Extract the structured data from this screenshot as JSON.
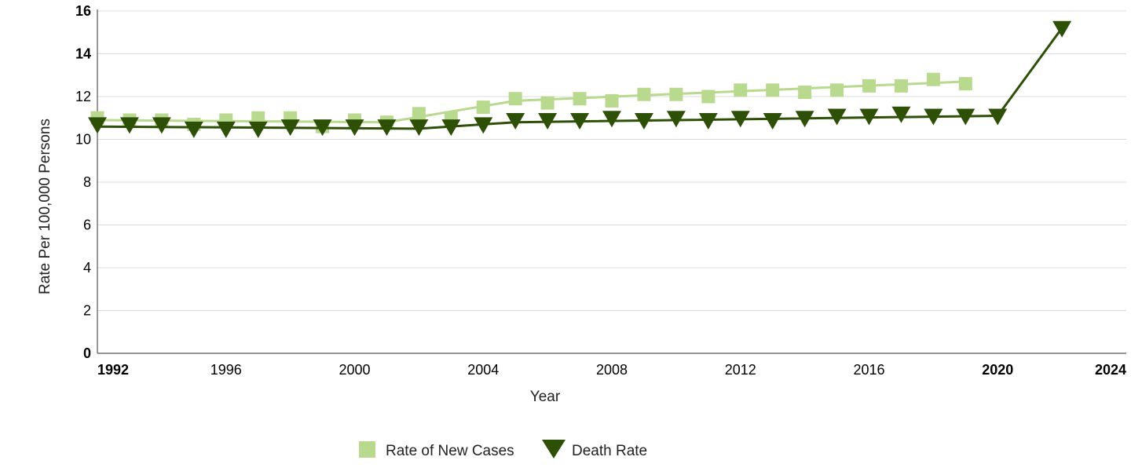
{
  "chart_data": {
    "type": "line",
    "xlabel": "Year",
    "ylabel": "Rate Per 100,000 Persons",
    "xlim": [
      1992,
      2024
    ],
    "ylim": [
      0,
      16
    ],
    "x_ticks": [
      {
        "value": 1992,
        "label": "1992",
        "bold": true
      },
      {
        "value": 1996,
        "label": "1996",
        "bold": false
      },
      {
        "value": 2000,
        "label": "2000",
        "bold": false
      },
      {
        "value": 2004,
        "label": "2004",
        "bold": false
      },
      {
        "value": 2008,
        "label": "2008",
        "bold": false
      },
      {
        "value": 2012,
        "label": "2012",
        "bold": false
      },
      {
        "value": 2016,
        "label": "2016",
        "bold": false
      },
      {
        "value": 2020,
        "label": "2020",
        "bold": true
      },
      {
        "value": 2024,
        "label": "2024",
        "bold": true
      }
    ],
    "y_ticks": [
      {
        "value": 0,
        "label": "0",
        "bold": true
      },
      {
        "value": 2,
        "label": "2",
        "bold": false
      },
      {
        "value": 4,
        "label": "4",
        "bold": false
      },
      {
        "value": 6,
        "label": "6",
        "bold": false
      },
      {
        "value": 8,
        "label": "8",
        "bold": false
      },
      {
        "value": 10,
        "label": "10",
        "bold": false
      },
      {
        "value": 12,
        "label": "12",
        "bold": false
      },
      {
        "value": 14,
        "label": "14",
        "bold": true
      },
      {
        "value": 16,
        "label": "16",
        "bold": true
      }
    ],
    "grid": true,
    "legend_position": "bottom-center",
    "series": [
      {
        "name": "Rate of New Cases",
        "color": "#b9d98f",
        "marker": "square",
        "points": [
          {
            "x": 1992,
            "y": 11.0
          },
          {
            "x": 1993,
            "y": 10.9
          },
          {
            "x": 1994,
            "y": 10.9
          },
          {
            "x": 1995,
            "y": 10.7
          },
          {
            "x": 1996,
            "y": 10.9
          },
          {
            "x": 1997,
            "y": 11.0
          },
          {
            "x": 1998,
            "y": 11.0
          },
          {
            "x": 1999,
            "y": 10.6
          },
          {
            "x": 2000,
            "y": 10.9
          },
          {
            "x": 2001,
            "y": 10.8
          },
          {
            "x": 2002,
            "y": 11.2
          },
          {
            "x": 2003,
            "y": 11.0
          },
          {
            "x": 2004,
            "y": 11.5
          },
          {
            "x": 2005,
            "y": 11.9
          },
          {
            "x": 2006,
            "y": 11.7
          },
          {
            "x": 2007,
            "y": 11.9
          },
          {
            "x": 2008,
            "y": 11.8
          },
          {
            "x": 2009,
            "y": 12.1
          },
          {
            "x": 2010,
            "y": 12.1
          },
          {
            "x": 2011,
            "y": 12.0
          },
          {
            "x": 2012,
            "y": 12.3
          },
          {
            "x": 2013,
            "y": 12.3
          },
          {
            "x": 2014,
            "y": 12.2
          },
          {
            "x": 2015,
            "y": 12.3
          },
          {
            "x": 2016,
            "y": 12.5
          },
          {
            "x": 2017,
            "y": 12.5
          },
          {
            "x": 2018,
            "y": 12.8
          },
          {
            "x": 2019,
            "y": 12.6
          }
        ],
        "trend_line": [
          {
            "x": 1992,
            "y": 10.9
          },
          {
            "x": 2001,
            "y": 10.8
          },
          {
            "x": 2005,
            "y": 11.8
          },
          {
            "x": 2019,
            "y": 12.7
          }
        ]
      },
      {
        "name": "Death Rate",
        "color": "#2d5006",
        "marker": "triangle-down",
        "points": [
          {
            "x": 1992,
            "y": 10.7
          },
          {
            "x": 1993,
            "y": 10.7
          },
          {
            "x": 1994,
            "y": 10.7
          },
          {
            "x": 1995,
            "y": 10.5
          },
          {
            "x": 1996,
            "y": 10.5
          },
          {
            "x": 1997,
            "y": 10.5
          },
          {
            "x": 1998,
            "y": 10.6
          },
          {
            "x": 1999,
            "y": 10.6
          },
          {
            "x": 2000,
            "y": 10.6
          },
          {
            "x": 2001,
            "y": 10.6
          },
          {
            "x": 2002,
            "y": 10.6
          },
          {
            "x": 2003,
            "y": 10.6
          },
          {
            "x": 2004,
            "y": 10.7
          },
          {
            "x": 2005,
            "y": 10.9
          },
          {
            "x": 2006,
            "y": 10.9
          },
          {
            "x": 2007,
            "y": 10.9
          },
          {
            "x": 2008,
            "y": 11.0
          },
          {
            "x": 2009,
            "y": 10.9
          },
          {
            "x": 2010,
            "y": 11.0
          },
          {
            "x": 2011,
            "y": 10.9
          },
          {
            "x": 2012,
            "y": 11.0
          },
          {
            "x": 2013,
            "y": 10.9
          },
          {
            "x": 2014,
            "y": 11.0
          },
          {
            "x": 2015,
            "y": 11.1
          },
          {
            "x": 2016,
            "y": 11.1
          },
          {
            "x": 2017,
            "y": 11.2
          },
          {
            "x": 2018,
            "y": 11.1
          },
          {
            "x": 2019,
            "y": 11.1
          },
          {
            "x": 2020,
            "y": 11.1
          },
          {
            "x": 2022,
            "y": 15.2
          }
        ],
        "trend_line": [
          {
            "x": 1992,
            "y": 10.6
          },
          {
            "x": 2002,
            "y": 10.5
          },
          {
            "x": 2005,
            "y": 10.8
          },
          {
            "x": 2020,
            "y": 11.1
          },
          {
            "x": 2022,
            "y": 15.2
          }
        ]
      }
    ]
  }
}
